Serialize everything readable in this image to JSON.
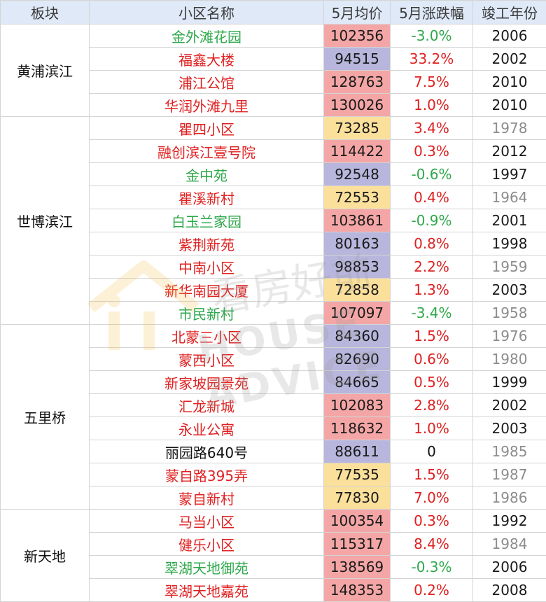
{
  "headers": [
    "板块",
    "小区名称",
    "5月均价",
    "5月涨跌幅",
    "竣工年份"
  ],
  "watermark": {
    "cn": "看房好前",
    "en": "HOUSE ADVICE"
  },
  "colors": {
    "up": "#e02020",
    "down": "#2ea84a",
    "price_high": "#f4a6a6",
    "price_mid": "#b8b6dc",
    "price_low": "#fbe09b",
    "header_bg": "#dfe9f7"
  },
  "groups": [
    {
      "district": "黄浦滨江",
      "rows": [
        {
          "name": "金外滩花园",
          "price": "102356",
          "change": "-3.0%",
          "year": "2006",
          "trend": "down",
          "price_level": "high",
          "year_tone": "new"
        },
        {
          "name": "福鑫大楼",
          "price": "94515",
          "change": "33.2%",
          "year": "2002",
          "trend": "up",
          "price_level": "mid",
          "year_tone": "new"
        },
        {
          "name": "浦江公馆",
          "price": "128763",
          "change": "7.5%",
          "year": "2010",
          "trend": "up",
          "price_level": "high",
          "year_tone": "new"
        },
        {
          "name": "华润外滩九里",
          "price": "130026",
          "change": "1.0%",
          "year": "2010",
          "trend": "up",
          "price_level": "high",
          "year_tone": "new"
        }
      ]
    },
    {
      "district": "世博滨江",
      "rows": [
        {
          "name": "瞿四小区",
          "price": "73285",
          "change": "3.4%",
          "year": "1978",
          "trend": "up",
          "price_level": "low",
          "year_tone": "old"
        },
        {
          "name": "融创滨江壹号院",
          "price": "114422",
          "change": "0.3%",
          "year": "2012",
          "trend": "up",
          "price_level": "high",
          "year_tone": "new"
        },
        {
          "name": "金中苑",
          "price": "92548",
          "change": "-0.6%",
          "year": "1997",
          "trend": "down",
          "price_level": "mid",
          "year_tone": "new"
        },
        {
          "name": "瞿溪新村",
          "price": "72553",
          "change": "0.4%",
          "year": "1964",
          "trend": "up",
          "price_level": "low",
          "year_tone": "old"
        },
        {
          "name": "白玉兰家园",
          "price": "103861",
          "change": "-0.9%",
          "year": "2001",
          "trend": "down",
          "price_level": "high",
          "year_tone": "new"
        },
        {
          "name": "紫荆新苑",
          "price": "80163",
          "change": "0.8%",
          "year": "1998",
          "trend": "up",
          "price_level": "mid",
          "year_tone": "new"
        },
        {
          "name": "中南小区",
          "price": "98853",
          "change": "2.2%",
          "year": "1959",
          "trend": "up",
          "price_level": "mid",
          "year_tone": "old"
        },
        {
          "name": "新华南园大厦",
          "price": "72858",
          "change": "1.3%",
          "year": "2003",
          "trend": "up",
          "price_level": "low",
          "year_tone": "new"
        },
        {
          "name": "市民新村",
          "price": "107097",
          "change": "-3.4%",
          "year": "1958",
          "trend": "down",
          "price_level": "high",
          "year_tone": "old"
        }
      ]
    },
    {
      "district": "五里桥",
      "rows": [
        {
          "name": "北蒙三小区",
          "price": "84360",
          "change": "1.5%",
          "year": "1976",
          "trend": "up",
          "price_level": "mid",
          "year_tone": "old"
        },
        {
          "name": "蒙西小区",
          "price": "82690",
          "change": "0.6%",
          "year": "1980",
          "trend": "up",
          "price_level": "mid",
          "year_tone": "old"
        },
        {
          "name": "新家坡园景苑",
          "price": "84665",
          "change": "0.5%",
          "year": "1999",
          "trend": "up",
          "price_level": "mid",
          "year_tone": "new"
        },
        {
          "name": "汇龙新城",
          "price": "102083",
          "change": "2.8%",
          "year": "2002",
          "trend": "up",
          "price_level": "high",
          "year_tone": "new"
        },
        {
          "name": "永业公寓",
          "price": "118632",
          "change": "1.0%",
          "year": "2003",
          "trend": "up",
          "price_level": "high",
          "year_tone": "new"
        },
        {
          "name": "丽园路640号",
          "price": "88611",
          "change": "0",
          "year": "1985",
          "trend": "flat",
          "price_level": "mid",
          "year_tone": "old"
        },
        {
          "name": "蒙自路395弄",
          "price": "77535",
          "change": "1.5%",
          "year": "1987",
          "trend": "up",
          "price_level": "low",
          "year_tone": "old"
        },
        {
          "name": "蒙自新村",
          "price": "77830",
          "change": "7.0%",
          "year": "1986",
          "trend": "up",
          "price_level": "low",
          "year_tone": "old"
        }
      ]
    },
    {
      "district": "新天地",
      "rows": [
        {
          "name": "马当小区",
          "price": "100354",
          "change": "0.3%",
          "year": "1992",
          "trend": "up",
          "price_level": "high",
          "year_tone": "new"
        },
        {
          "name": "健乐小区",
          "price": "115317",
          "change": "8.4%",
          "year": "1984",
          "trend": "up",
          "price_level": "high",
          "year_tone": "old"
        },
        {
          "name": "翠湖天地御苑",
          "price": "138569",
          "change": "-0.3%",
          "year": "2006",
          "trend": "down",
          "price_level": "high",
          "year_tone": "new"
        },
        {
          "name": "翠湖天地嘉苑",
          "price": "148353",
          "change": "0.2%",
          "year": "2008",
          "trend": "up",
          "price_level": "high",
          "year_tone": "new"
        }
      ]
    }
  ]
}
